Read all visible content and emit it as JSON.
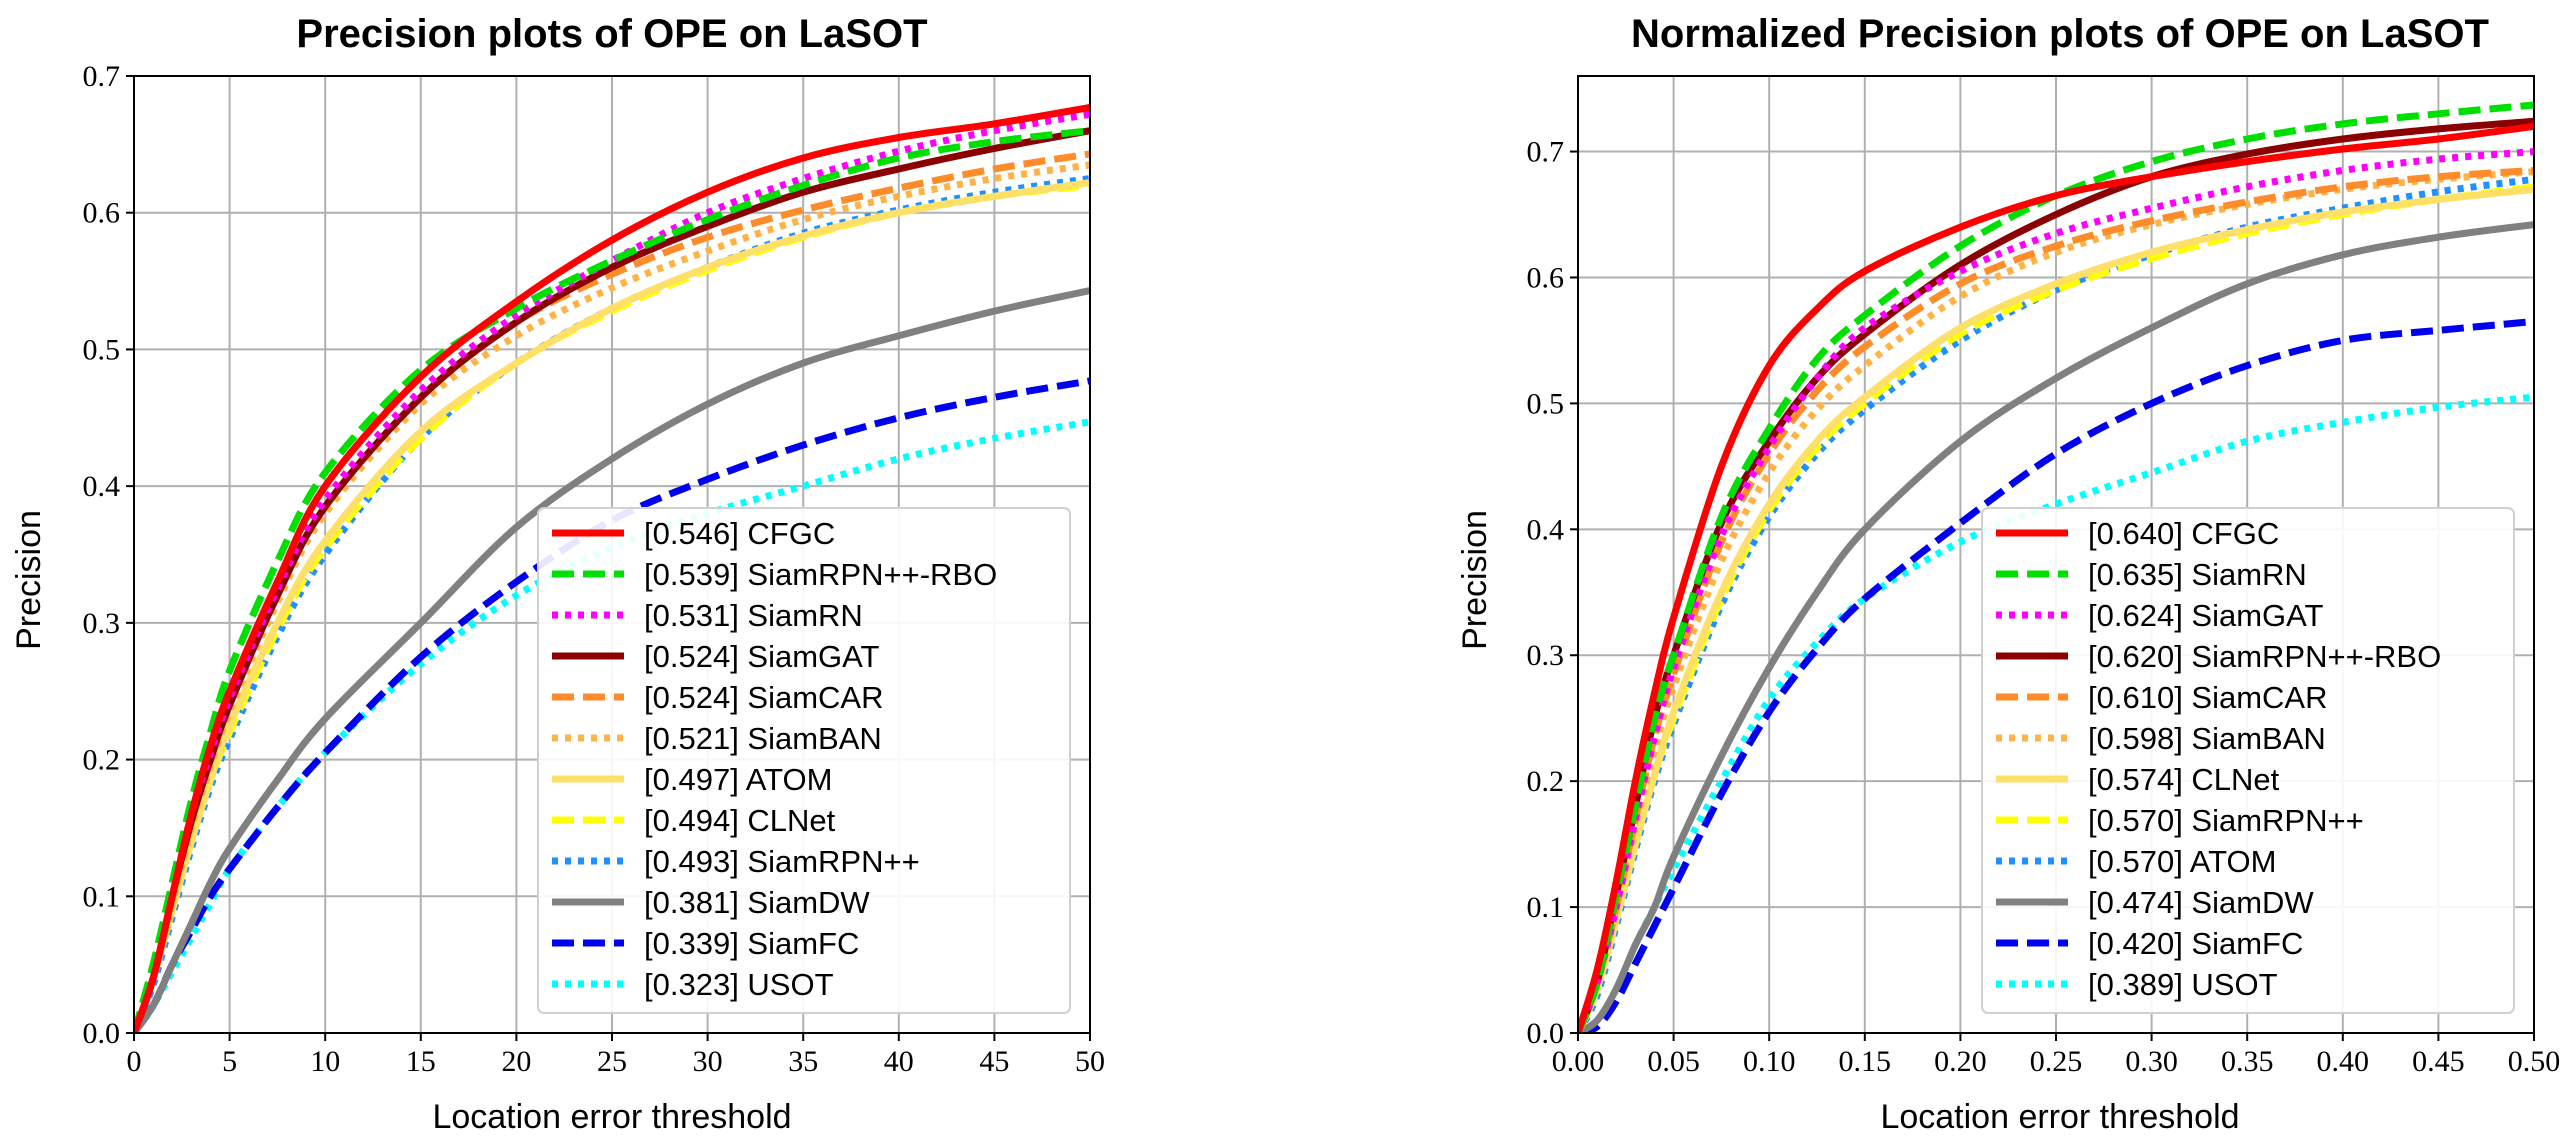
{
  "chart_data": [
    {
      "type": "line",
      "title": "Precision plots of OPE on LaSOT",
      "xlabel": "Location error threshold",
      "ylabel": "Precision",
      "xlim": [
        0,
        50
      ],
      "ylim": [
        0,
        0.7
      ],
      "xticks": [
        0,
        5,
        10,
        15,
        20,
        25,
        30,
        35,
        40,
        45,
        50
      ],
      "xtick_labels": [
        "0",
        "5",
        "10",
        "15",
        "20",
        "25",
        "30",
        "35",
        "40",
        "45",
        "50"
      ],
      "yticks": [
        0.0,
        0.1,
        0.2,
        0.3,
        0.4,
        0.5,
        0.6,
        0.7
      ],
      "ytick_labels": [
        "0.0",
        "0.1",
        "0.2",
        "0.3",
        "0.4",
        "0.5",
        "0.6",
        "0.7"
      ],
      "grid": true,
      "legend_position": "lower-right",
      "x": [
        0,
        1,
        2,
        3,
        4,
        5,
        7.5,
        10,
        15,
        20,
        25,
        30,
        35,
        40,
        45,
        50
      ],
      "series": [
        {
          "name": "CFGC",
          "score": "[0.546]",
          "color": "#ff0000",
          "style": "solid",
          "values": [
            0,
            0.04,
            0.1,
            0.16,
            0.21,
            0.25,
            0.33,
            0.4,
            0.48,
            0.535,
            0.58,
            0.615,
            0.64,
            0.655,
            0.665,
            0.677
          ]
        },
        {
          "name": "SiamRPN++-RBO",
          "score": "[0.539]",
          "color": "#00e000",
          "style": "dashed",
          "values": [
            0,
            0.05,
            0.11,
            0.17,
            0.22,
            0.265,
            0.345,
            0.41,
            0.485,
            0.53,
            0.565,
            0.595,
            0.62,
            0.64,
            0.652,
            0.66
          ]
        },
        {
          "name": "SiamRN",
          "score": "[0.531]",
          "color": "#ff00ff",
          "style": "dotted",
          "values": [
            0,
            0.04,
            0.1,
            0.16,
            0.205,
            0.245,
            0.325,
            0.39,
            0.47,
            0.525,
            0.565,
            0.6,
            0.625,
            0.645,
            0.66,
            0.672
          ]
        },
        {
          "name": "SiamGAT",
          "score": "[0.524]",
          "color": "#8b0000",
          "style": "solid",
          "values": [
            0,
            0.04,
            0.1,
            0.155,
            0.2,
            0.24,
            0.32,
            0.385,
            0.465,
            0.52,
            0.56,
            0.59,
            0.615,
            0.632,
            0.647,
            0.66
          ]
        },
        {
          "name": "SiamCAR",
          "score": "[0.524]",
          "color": "#ff8c2a",
          "style": "dashed",
          "values": [
            0,
            0.04,
            0.1,
            0.155,
            0.2,
            0.24,
            0.32,
            0.385,
            0.465,
            0.52,
            0.555,
            0.582,
            0.602,
            0.618,
            0.632,
            0.643
          ]
        },
        {
          "name": "SiamBAN",
          "score": "[0.521]",
          "color": "#ffb347",
          "style": "dotted",
          "values": [
            0,
            0.04,
            0.095,
            0.15,
            0.195,
            0.235,
            0.315,
            0.38,
            0.46,
            0.51,
            0.545,
            0.572,
            0.595,
            0.612,
            0.625,
            0.635
          ]
        },
        {
          "name": "ATOM",
          "score": "[0.497]",
          "color": "#ffe066",
          "style": "solid",
          "values": [
            0,
            0.04,
            0.09,
            0.14,
            0.185,
            0.225,
            0.3,
            0.36,
            0.44,
            0.49,
            0.53,
            0.56,
            0.583,
            0.6,
            0.612,
            0.622
          ]
        },
        {
          "name": "CLNet",
          "score": "[0.494]",
          "color": "#ffff00",
          "style": "dashed",
          "values": [
            0,
            0.04,
            0.09,
            0.14,
            0.185,
            0.22,
            0.295,
            0.355,
            0.435,
            0.49,
            0.528,
            0.558,
            0.582,
            0.6,
            0.612,
            0.62
          ]
        },
        {
          "name": "SiamRPN++",
          "score": "[0.493]",
          "color": "#1e90ff",
          "style": "dotted",
          "values": [
            0,
            0.035,
            0.085,
            0.135,
            0.18,
            0.215,
            0.29,
            0.35,
            0.435,
            0.49,
            0.53,
            0.56,
            0.585,
            0.602,
            0.615,
            0.625
          ]
        },
        {
          "name": "SiamDW",
          "score": "[0.381]",
          "color": "#808080",
          "style": "solid",
          "values": [
            0,
            0.02,
            0.05,
            0.08,
            0.11,
            0.135,
            0.185,
            0.23,
            0.3,
            0.37,
            0.42,
            0.46,
            0.49,
            0.51,
            0.528,
            0.543
          ]
        },
        {
          "name": "SiamFC",
          "score": "[0.339]",
          "color": "#0000ee",
          "style": "dashed",
          "values": [
            0,
            0.02,
            0.05,
            0.075,
            0.1,
            0.12,
            0.165,
            0.205,
            0.275,
            0.33,
            0.375,
            0.405,
            0.43,
            0.45,
            0.465,
            0.477
          ]
        },
        {
          "name": "USOT",
          "score": "[0.323]",
          "color": "#00ffff",
          "style": "dotted",
          "values": [
            0,
            0.02,
            0.045,
            0.07,
            0.095,
            0.12,
            0.165,
            0.205,
            0.27,
            0.32,
            0.355,
            0.38,
            0.4,
            0.42,
            0.435,
            0.447
          ]
        }
      ]
    },
    {
      "type": "line",
      "title": "Normalized Precision plots of OPE on LaSOT",
      "xlabel": "Location error threshold",
      "ylabel": "Precision",
      "xlim": [
        0,
        0.5
      ],
      "ylim": [
        0,
        0.76
      ],
      "xticks": [
        0,
        0.05,
        0.1,
        0.15,
        0.2,
        0.25,
        0.3,
        0.35,
        0.4,
        0.45,
        0.5
      ],
      "xtick_labels": [
        "0.00",
        "0.05",
        "0.10",
        "0.15",
        "0.20",
        "0.25",
        "0.30",
        "0.35",
        "0.40",
        "0.45",
        "0.50"
      ],
      "yticks": [
        0.0,
        0.1,
        0.2,
        0.3,
        0.4,
        0.5,
        0.6,
        0.7
      ],
      "ytick_labels": [
        "0.0",
        "0.1",
        "0.2",
        "0.3",
        "0.4",
        "0.5",
        "0.6",
        "0.7"
      ],
      "grid": true,
      "legend_position": "lower-right",
      "x": [
        0,
        0.01,
        0.02,
        0.03,
        0.04,
        0.05,
        0.075,
        0.1,
        0.125,
        0.15,
        0.2,
        0.25,
        0.3,
        0.35,
        0.4,
        0.45,
        0.5
      ],
      "series": [
        {
          "name": "CFGC",
          "score": "[0.640]",
          "color": "#ff0000",
          "style": "solid",
          "values": [
            0,
            0.05,
            0.12,
            0.2,
            0.27,
            0.33,
            0.45,
            0.53,
            0.575,
            0.605,
            0.64,
            0.665,
            0.68,
            0.692,
            0.702,
            0.71,
            0.72
          ]
        },
        {
          "name": "SiamRN",
          "score": "[0.635]",
          "color": "#00e000",
          "style": "dashed",
          "values": [
            0,
            0.04,
            0.11,
            0.18,
            0.25,
            0.3,
            0.41,
            0.48,
            0.535,
            0.57,
            0.625,
            0.665,
            0.692,
            0.71,
            0.722,
            0.73,
            0.737
          ]
        },
        {
          "name": "SiamGAT",
          "score": "[0.624]",
          "color": "#ff00ff",
          "style": "dotted",
          "values": [
            0,
            0.04,
            0.1,
            0.17,
            0.235,
            0.29,
            0.395,
            0.465,
            0.52,
            0.56,
            0.605,
            0.635,
            0.655,
            0.672,
            0.685,
            0.694,
            0.7
          ]
        },
        {
          "name": "SiamRPN++-RBO",
          "score": "[0.620]",
          "color": "#8b0000",
          "style": "solid",
          "values": [
            0,
            0.04,
            0.11,
            0.18,
            0.25,
            0.3,
            0.405,
            0.47,
            0.52,
            0.555,
            0.61,
            0.65,
            0.68,
            0.698,
            0.71,
            0.718,
            0.724
          ]
        },
        {
          "name": "SiamCAR",
          "score": "[0.610]",
          "color": "#ff8c2a",
          "style": "dashed",
          "values": [
            0,
            0.04,
            0.1,
            0.17,
            0.235,
            0.285,
            0.39,
            0.46,
            0.51,
            0.545,
            0.595,
            0.625,
            0.645,
            0.66,
            0.672,
            0.68,
            0.685
          ]
        },
        {
          "name": "SiamBAN",
          "score": "[0.598]",
          "color": "#ffb347",
          "style": "dotted",
          "values": [
            0,
            0.04,
            0.1,
            0.165,
            0.225,
            0.275,
            0.375,
            0.445,
            0.495,
            0.53,
            0.585,
            0.62,
            0.642,
            0.658,
            0.67,
            0.678,
            0.684
          ]
        },
        {
          "name": "CLNet",
          "score": "[0.574]",
          "color": "#ffe066",
          "style": "solid",
          "values": [
            0,
            0.035,
            0.09,
            0.15,
            0.205,
            0.255,
            0.35,
            0.42,
            0.47,
            0.505,
            0.56,
            0.595,
            0.62,
            0.638,
            0.652,
            0.662,
            0.67
          ]
        },
        {
          "name": "SiamRPN++",
          "score": "[0.570]",
          "color": "#ffff00",
          "style": "dashed",
          "values": [
            0,
            0.035,
            0.09,
            0.15,
            0.205,
            0.25,
            0.345,
            0.415,
            0.465,
            0.5,
            0.555,
            0.59,
            0.615,
            0.635,
            0.65,
            0.662,
            0.672
          ]
        },
        {
          "name": "ATOM",
          "score": "[0.570]",
          "color": "#1e90ff",
          "style": "dotted",
          "values": [
            0,
            0.03,
            0.085,
            0.145,
            0.2,
            0.245,
            0.34,
            0.41,
            0.46,
            0.495,
            0.55,
            0.59,
            0.618,
            0.64,
            0.655,
            0.668,
            0.678
          ]
        },
        {
          "name": "SiamDW",
          "score": "[0.474]",
          "color": "#808080",
          "style": "solid",
          "values": [
            0,
            0.01,
            0.035,
            0.07,
            0.1,
            0.14,
            0.22,
            0.29,
            0.35,
            0.4,
            0.47,
            0.52,
            0.56,
            0.595,
            0.618,
            0.632,
            0.642
          ]
        },
        {
          "name": "SiamFC",
          "score": "[0.420]",
          "color": "#0000ee",
          "style": "dashed",
          "values": [
            0,
            0.005,
            0.025,
            0.055,
            0.085,
            0.115,
            0.19,
            0.255,
            0.305,
            0.345,
            0.405,
            0.46,
            0.5,
            0.53,
            0.55,
            0.558,
            0.565
          ]
        },
        {
          "name": "USOT",
          "score": "[0.389]",
          "color": "#00ffff",
          "style": "dotted",
          "values": [
            0,
            0.01,
            0.035,
            0.07,
            0.1,
            0.13,
            0.2,
            0.265,
            0.31,
            0.345,
            0.39,
            0.42,
            0.445,
            0.47,
            0.485,
            0.497,
            0.505
          ]
        }
      ]
    }
  ]
}
